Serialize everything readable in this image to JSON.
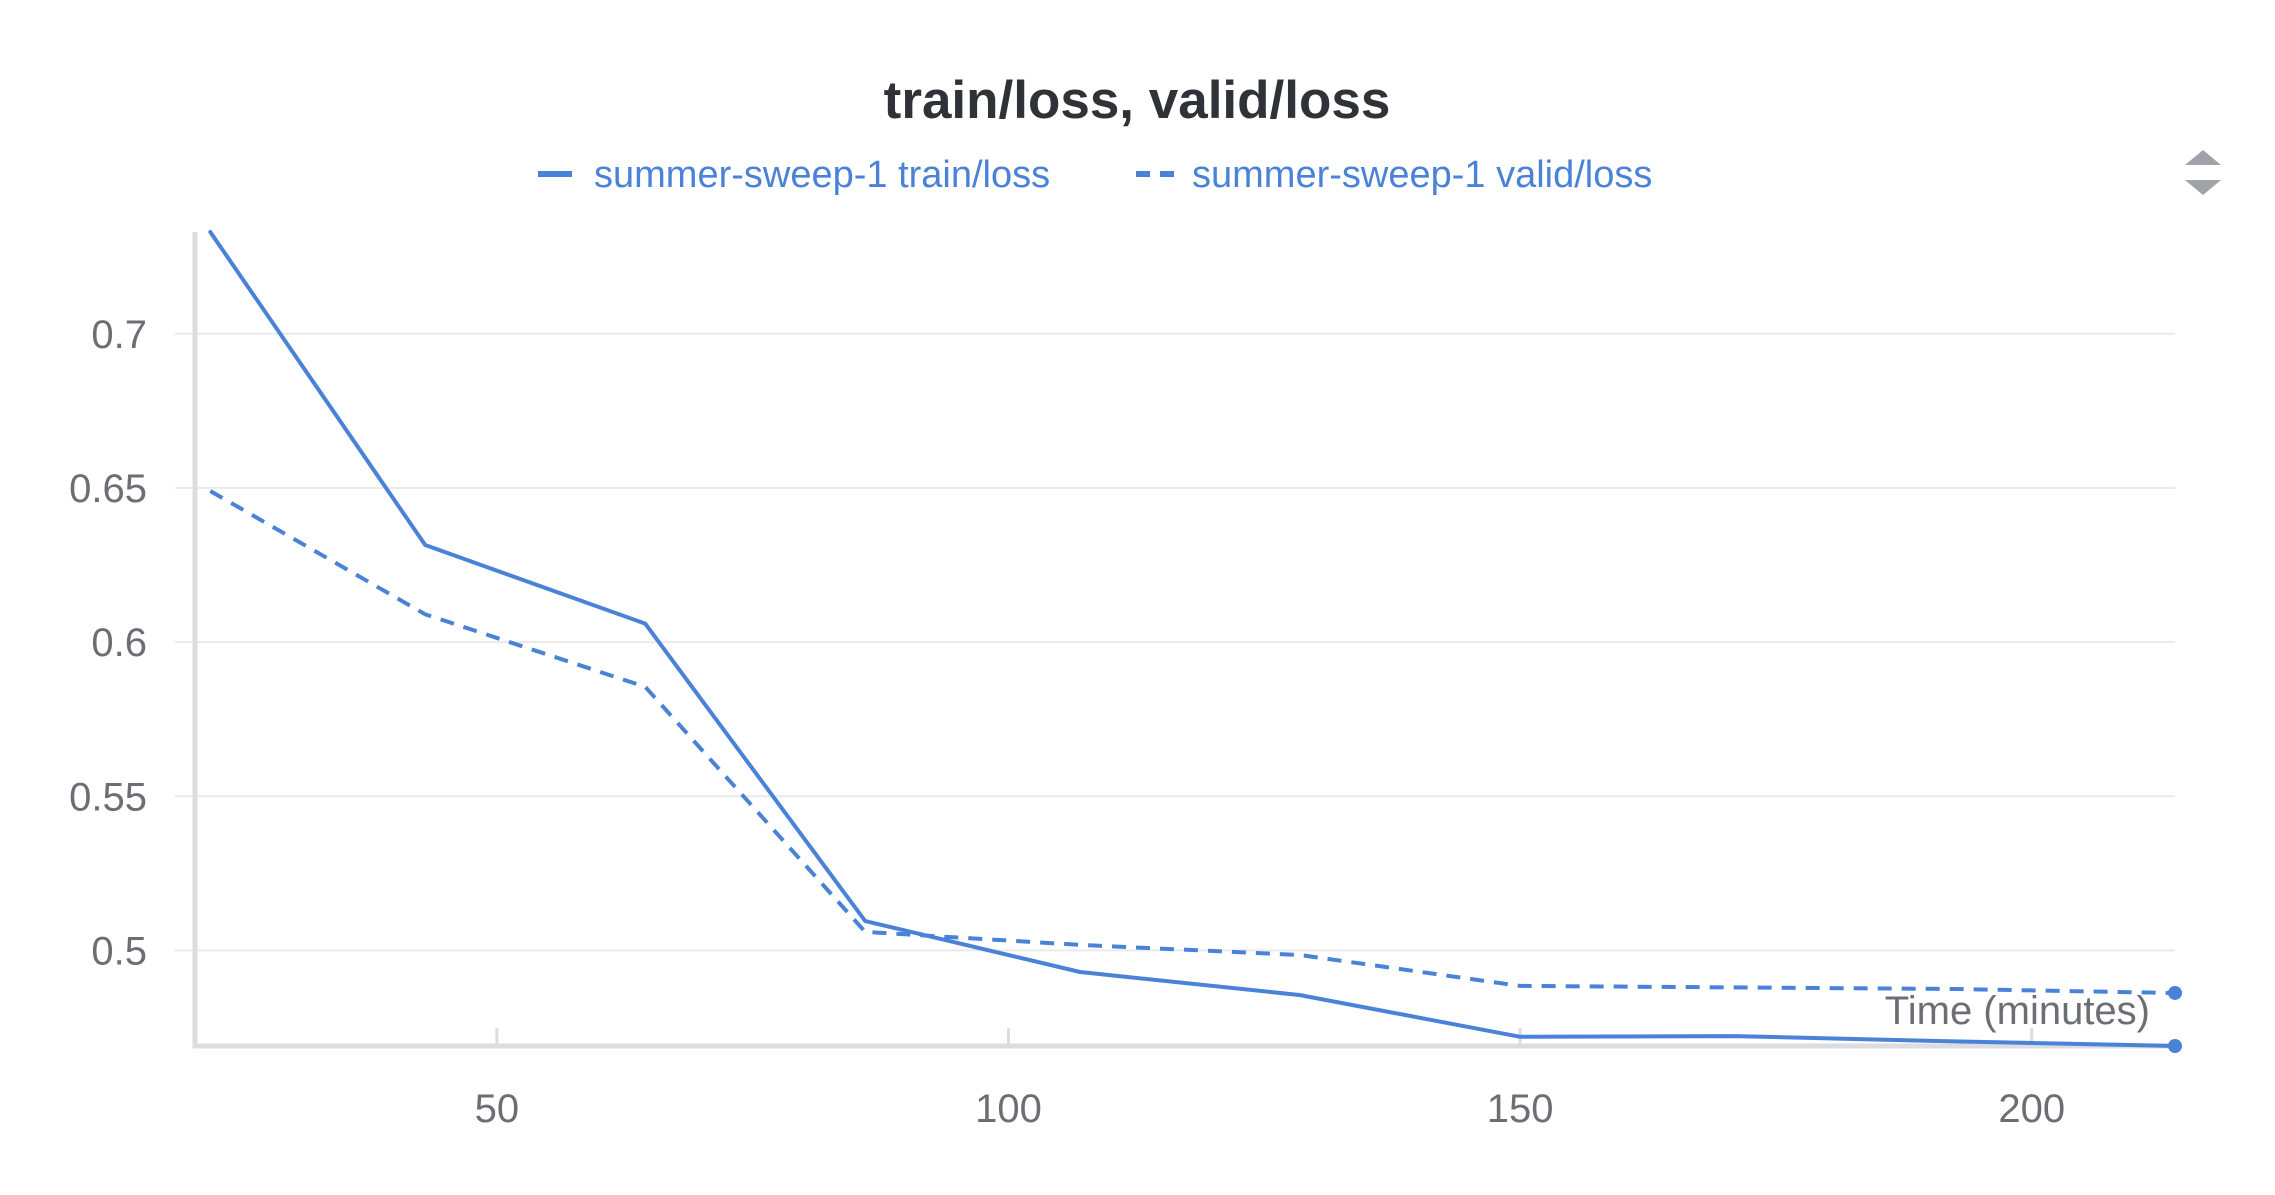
{
  "chart_data": {
    "type": "line",
    "title": "train/loss, valid/loss",
    "xlabel": "Time (minutes)",
    "ylabel": "",
    "xlim": [
      20.5,
      214
    ],
    "ylim": [
      0.469,
      0.733
    ],
    "xticks": [
      50,
      100,
      150,
      200
    ],
    "yticks": [
      0.5,
      0.55,
      0.6,
      0.65,
      0.7
    ],
    "ytick_labels": [
      "0.5",
      "0.55",
      "0.6",
      "0.65",
      "0.7"
    ],
    "xtick_labels": [
      "50",
      "100",
      "150",
      "200"
    ],
    "grid": true,
    "legend_position": "top",
    "series": [
      {
        "name": "summer-sweep-1 train/loss",
        "style": "solid",
        "color": "#4a82d8",
        "x": [
          22,
          43,
          64.5,
          86,
          107,
          128.5,
          150,
          171,
          192.5,
          214
        ],
        "y": [
          0.733,
          0.6315,
          0.606,
          0.5095,
          0.493,
          0.4855,
          0.472,
          0.4722,
          0.4705,
          0.469
        ]
      },
      {
        "name": "summer-sweep-1 valid/loss",
        "style": "dashed",
        "color": "#4a82d8",
        "x": [
          22,
          43,
          64.5,
          86,
          107,
          128.5,
          150,
          171,
          192.5,
          214
        ],
        "y": [
          0.649,
          0.609,
          0.5855,
          0.506,
          0.5018,
          0.4985,
          0.4885,
          0.488,
          0.4875,
          0.4862
        ]
      }
    ]
  },
  "ui": {
    "sort_icon": "sort-updown-icon"
  }
}
